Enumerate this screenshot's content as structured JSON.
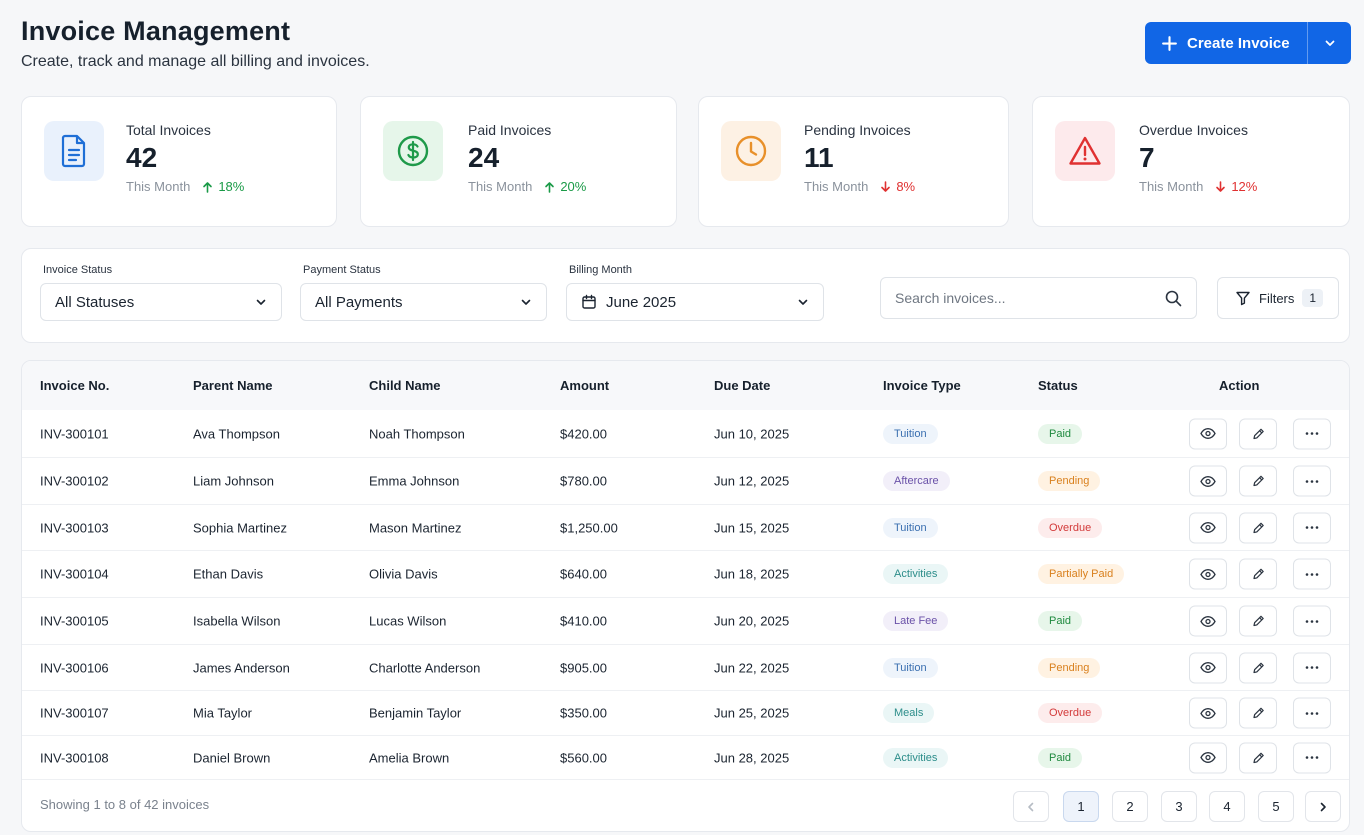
{
  "header": {
    "title": "Invoice Management",
    "subtitle": "Create, track and manage all billing and invoices.",
    "create_label": "Create Invoice"
  },
  "stats": [
    {
      "label": "Total Invoices",
      "value": "42",
      "period": "This Month",
      "trend": "18%",
      "direction": "up",
      "icon": "document-icon",
      "color": "#1f6fd6"
    },
    {
      "label": "Paid Invoices",
      "value": "24",
      "period": "This Month",
      "trend": "20%",
      "direction": "up",
      "icon": "dollar-circle-icon",
      "color": "#1f9a4a"
    },
    {
      "label": "Pending Invoices",
      "value": "11",
      "period": "This Month",
      "trend": "8%",
      "direction": "down",
      "icon": "clock-icon",
      "color": "#e8902a"
    },
    {
      "label": "Overdue Invoices",
      "value": "7",
      "period": "This Month",
      "trend": "12%",
      "direction": "down",
      "icon": "warning-triangle-icon",
      "color": "#e03131"
    }
  ],
  "filters": {
    "invoice_status": {
      "label": "Invoice Status",
      "value": "All Statuses"
    },
    "payment_status": {
      "label": "Payment Status",
      "value": "All Payments"
    },
    "billing_month": {
      "label": "Billing Month",
      "value": "June 2025"
    },
    "search_placeholder": "Search invoices...",
    "filters_label": "Filters",
    "filters_count": "1"
  },
  "table": {
    "columns": [
      "Invoice No.",
      "Parent Name",
      "Child Name",
      "Amount",
      "Due Date",
      "Invoice Type",
      "Status",
      "Action"
    ],
    "rows": [
      [
        "INV-300101",
        "Ava Thompson",
        "Noah Thompson",
        "$420.00",
        "Jun 10, 2025",
        "Tuition",
        "Paid"
      ],
      [
        "INV-300102",
        "Liam Johnson",
        "Emma Johnson",
        "$780.00",
        "Jun 12, 2025",
        "Aftercare",
        "Pending"
      ],
      [
        "INV-300103",
        "Sophia Martinez",
        "Mason Martinez",
        "$1,250.00",
        "Jun 15, 2025",
        "Tuition",
        "Overdue"
      ],
      [
        "INV-300104",
        "Ethan Davis",
        "Olivia Davis",
        "$640.00",
        "Jun 18, 2025",
        "Activities",
        "Partially Paid"
      ],
      [
        "INV-300105",
        "Isabella Wilson",
        "Lucas Wilson",
        "$410.00",
        "Jun 20, 2025",
        "Late Fee",
        "Paid"
      ],
      [
        "INV-300106",
        "James Anderson",
        "Charlotte Anderson",
        "$905.00",
        "Jun 22, 2025",
        "Tuition",
        "Pending"
      ],
      [
        "INV-300107",
        "Mia Taylor",
        "Benjamin Taylor",
        "$350.00",
        "Jun 25, 2025",
        "Meals",
        "Overdue"
      ],
      [
        "INV-300108",
        "Daniel Brown",
        "Amelia Brown",
        "$560.00",
        "Jun 28, 2025",
        "Activities",
        "Paid"
      ]
    ],
    "footer_text": "Showing 1 to 8 of 42 invoices",
    "pages": [
      "1",
      "2",
      "3",
      "4",
      "5"
    ],
    "current_page": "1"
  }
}
